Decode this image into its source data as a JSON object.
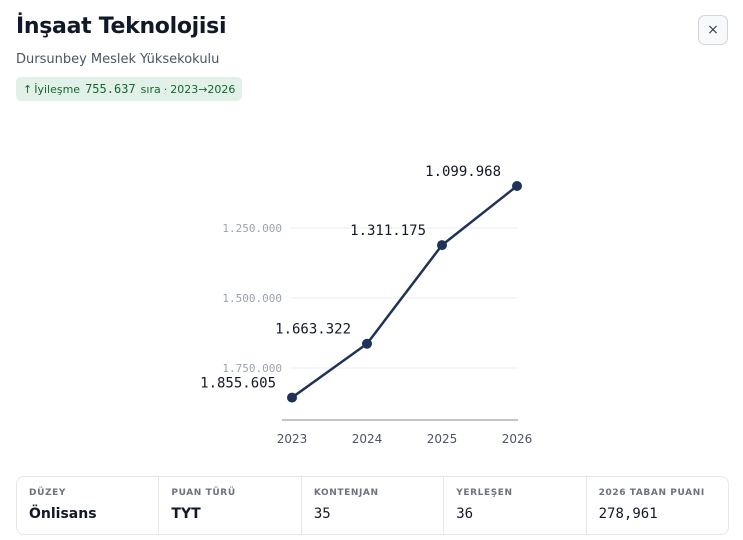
{
  "header": {
    "title": "İnşaat Teknolojisi",
    "subtitle": "Dursunbey Meslek Yüksekokulu",
    "close_label": "×"
  },
  "badge": {
    "arrow": "↑",
    "label": "İyileşme",
    "value": "755.637",
    "unit": "sıra",
    "separator": "·",
    "range": "2023→2026"
  },
  "chart_data": {
    "type": "line",
    "x": [
      "2023",
      "2024",
      "2025",
      "2026"
    ],
    "y": [
      1855605,
      1663322,
      1311175,
      1099968
    ],
    "point_labels": [
      "1.855.605",
      "1.663.322",
      "1.311.175",
      "1.099.968"
    ],
    "y_ticks": [
      1250000,
      1500000,
      1750000
    ],
    "y_tick_labels": [
      "1.250.000",
      "1.500.000",
      "1.750.000"
    ],
    "y_inverted": true,
    "grid": true,
    "line_color": "#1f3358"
  },
  "stats": [
    {
      "label": "DÜZEY",
      "value": "Önlisans"
    },
    {
      "label": "PUAN TÜRÜ",
      "value": "TYT"
    },
    {
      "label": "KONTENJAN",
      "value": "35"
    },
    {
      "label": "YERLEŞEN",
      "value": "36"
    },
    {
      "label": "2026 TABAN PUANI",
      "value": "278,961"
    }
  ]
}
